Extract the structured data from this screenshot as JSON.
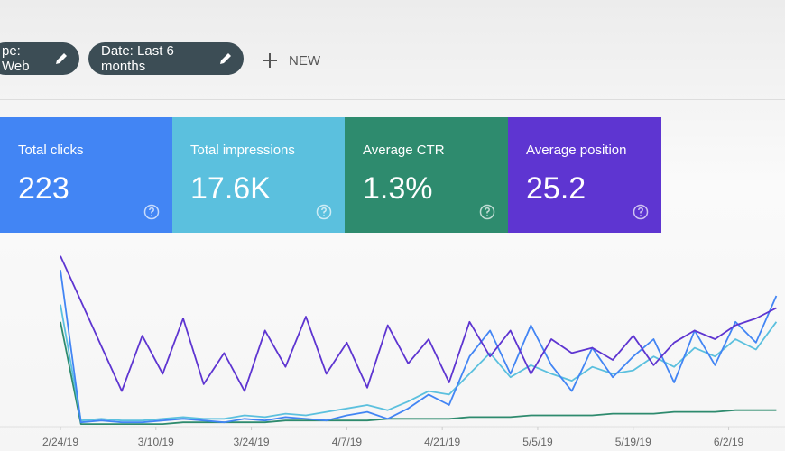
{
  "toolbar": {
    "filters": [
      "pe: Web",
      "Date: Last 6 months"
    ],
    "new_button": "NEW"
  },
  "metrics": [
    {
      "label": "Total clicks",
      "value": "223",
      "color": "#4285f4"
    },
    {
      "label": "Total impressions",
      "value": "17.6K",
      "color": "#5bc0de"
    },
    {
      "label": "Average CTR",
      "value": "1.3%",
      "color": "#2e8b6e"
    },
    {
      "label": "Average position",
      "value": "25.2",
      "color": "#5e35d1"
    }
  ],
  "chart_data": {
    "type": "line",
    "x": [
      0,
      3,
      6,
      9,
      12,
      15,
      18,
      21,
      24,
      27,
      30,
      33,
      36,
      39,
      42,
      45,
      48,
      51,
      54,
      57,
      60,
      63,
      66,
      69,
      72,
      75,
      78,
      81,
      84,
      87,
      90,
      93,
      96,
      99,
      102,
      105
    ],
    "xlim": [
      0,
      106
    ],
    "ylim": [
      0,
      100
    ],
    "xticks": [
      {
        "value": 0,
        "label": "2/24/19"
      },
      {
        "value": 14,
        "label": "3/10/19"
      },
      {
        "value": 28,
        "label": "3/24/19"
      },
      {
        "value": 42,
        "label": "4/7/19"
      },
      {
        "value": 56,
        "label": "4/21/19"
      },
      {
        "value": 70,
        "label": "5/5/19"
      },
      {
        "value": 84,
        "label": "5/19/19"
      },
      {
        "value": 98,
        "label": "6/2/19"
      }
    ],
    "series": [
      {
        "color": "#2e8b6e",
        "values": [
          60,
          1,
          1,
          1,
          1,
          1,
          2,
          2,
          2,
          2,
          2,
          3,
          3,
          3,
          3,
          3,
          4,
          4,
          4,
          4,
          5,
          5,
          5,
          6,
          6,
          6,
          6,
          7,
          7,
          7,
          8,
          8,
          8,
          9,
          9,
          9
        ]
      },
      {
        "color": "#5bc0de",
        "values": [
          70,
          3,
          4,
          3,
          3,
          4,
          5,
          4,
          4,
          6,
          5,
          7,
          6,
          8,
          10,
          12,
          9,
          14,
          20,
          18,
          30,
          42,
          28,
          35,
          30,
          26,
          34,
          30,
          32,
          40,
          34,
          45,
          40,
          50,
          44,
          60
        ]
      },
      {
        "color": "#4285f4",
        "values": [
          90,
          2,
          3,
          2,
          2,
          3,
          4,
          3,
          2,
          4,
          3,
          5,
          4,
          3,
          6,
          8,
          4,
          10,
          18,
          12,
          40,
          55,
          30,
          58,
          35,
          20,
          45,
          28,
          40,
          50,
          25,
          55,
          35,
          60,
          48,
          75
        ]
      },
      {
        "color": "#5e35d1",
        "values": [
          98,
          72,
          46,
          20,
          52,
          30,
          62,
          24,
          42,
          20,
          55,
          34,
          63,
          30,
          48,
          22,
          58,
          36,
          50,
          25,
          60,
          40,
          55,
          30,
          50,
          42,
          45,
          38,
          52,
          35,
          48,
          55,
          50,
          58,
          62,
          68
        ]
      }
    ]
  }
}
